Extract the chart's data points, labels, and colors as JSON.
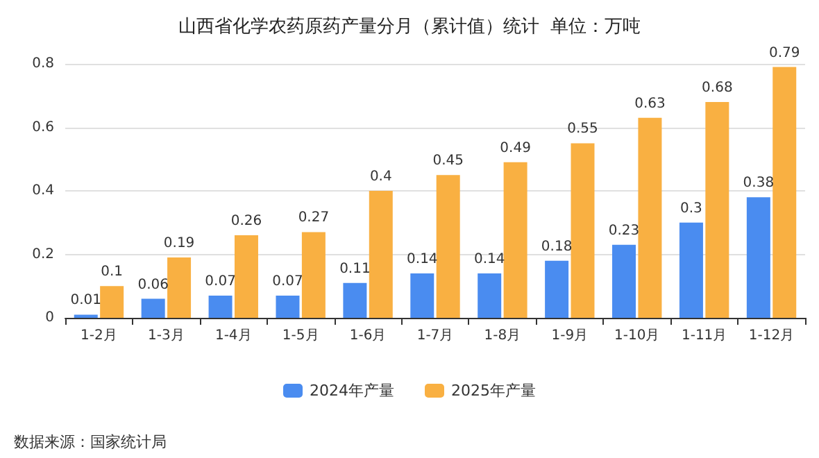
{
  "chart_data": {
    "type": "bar",
    "title": "山西省化学农药原药产量分月（累计值）统计  单位：万吨",
    "categories": [
      "1-2月",
      "1-3月",
      "1-4月",
      "1-5月",
      "1-6月",
      "1-7月",
      "1-8月",
      "1-9月",
      "1-10月",
      "1-11月",
      "1-12月"
    ],
    "series": [
      {
        "name": "2024年产量",
        "color": "#4a8cf0",
        "values": [
          0.01,
          0.06,
          0.07,
          0.07,
          0.11,
          0.14,
          0.14,
          0.18,
          0.23,
          0.3,
          0.38
        ]
      },
      {
        "name": "2025年产量",
        "color": "#f9b042",
        "values": [
          0.1,
          0.19,
          0.26,
          0.27,
          0.4,
          0.45,
          0.49,
          0.55,
          0.63,
          0.68,
          0.79
        ]
      }
    ],
    "ylim": [
      0,
      0.8
    ],
    "yticks": [
      0,
      0.2,
      0.4,
      0.6,
      0.8
    ],
    "grid": "y",
    "legend": "bottom",
    "data_labels": true,
    "annotations": [
      "数据来源：国家统计局"
    ]
  }
}
